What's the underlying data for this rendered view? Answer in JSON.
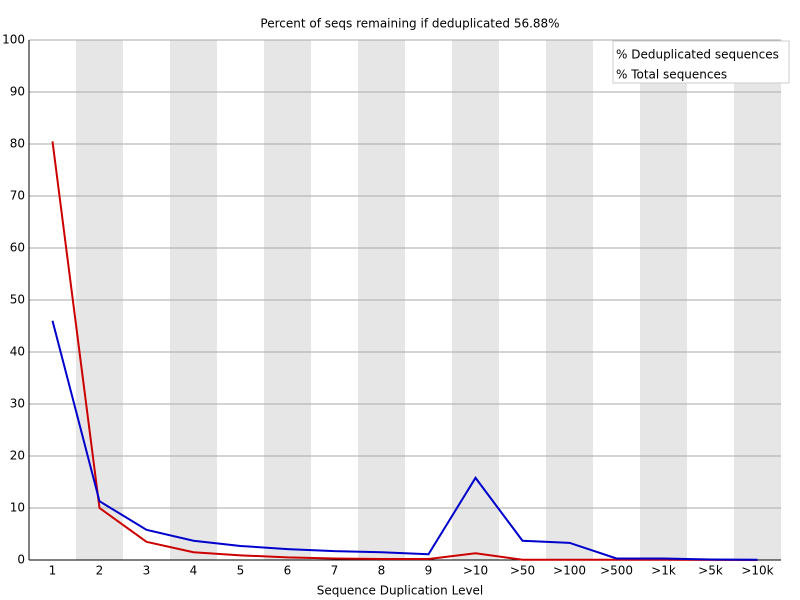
{
  "chart_data": {
    "type": "line",
    "title": "Percent of seqs remaining if deduplicated 56.88%",
    "x_label": "Sequence Duplication Level",
    "categories": [
      "1",
      "2",
      "3",
      "4",
      "5",
      "6",
      "7",
      "8",
      "9",
      ">10",
      ">50",
      ">100",
      ">500",
      ">1k",
      ">5k",
      ">10k"
    ],
    "series": [
      {
        "name": "% Deduplicated sequences",
        "color": "#cc0000",
        "values": [
          80.5,
          10,
          3.5,
          1.5,
          0.9,
          0.5,
          0.3,
          0.2,
          0.2,
          1.3,
          0.05,
          0.05,
          0.05,
          0.05,
          0.02,
          0.01
        ]
      },
      {
        "name": "% Total sequences",
        "color": "#0000cc",
        "values": [
          46,
          11.3,
          5.8,
          3.7,
          2.7,
          2.1,
          1.7,
          1.5,
          1.1,
          15.8,
          3.7,
          3.3,
          0.3,
          0.3,
          0.1,
          0.05
        ]
      }
    ],
    "ylim": [
      0,
      100
    ],
    "yticks": [
      0,
      10,
      20,
      30,
      40,
      50,
      60,
      70,
      80,
      90,
      100
    ],
    "grid": true,
    "legend_position": "top-right"
  }
}
